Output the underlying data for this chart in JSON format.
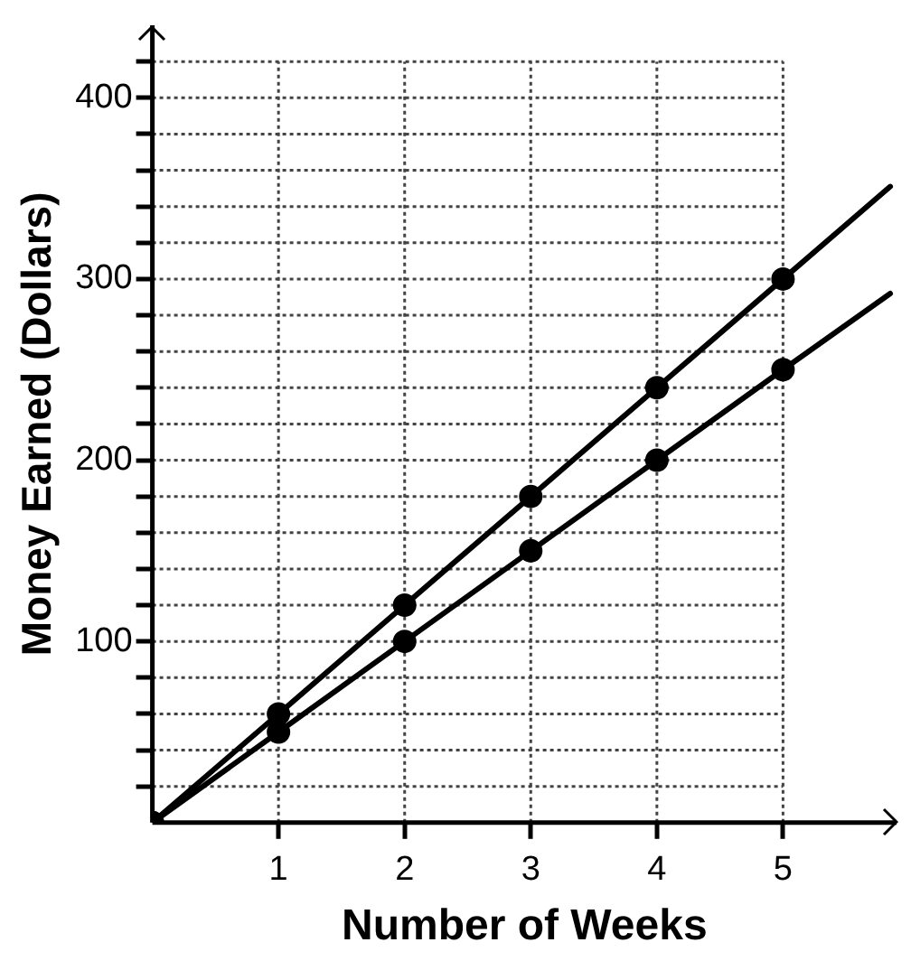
{
  "chart_data": {
    "type": "line",
    "xlabel": "Number of Weeks",
    "ylabel": "Money Earned (Dollars)",
    "xlim": [
      0,
      5.9
    ],
    "ylim": [
      0,
      440
    ],
    "xticks": [
      1,
      2,
      3,
      4,
      5
    ],
    "yticks": [
      {
        "value": 20,
        "label": null
      },
      {
        "value": 40,
        "label": null
      },
      {
        "value": 60,
        "label": null
      },
      {
        "value": 80,
        "label": null
      },
      100,
      {
        "value": 120,
        "label": null
      },
      {
        "value": 140,
        "label": null
      },
      {
        "value": 160,
        "label": null
      },
      {
        "value": 180,
        "label": null
      },
      200,
      {
        "value": 220,
        "label": null
      },
      {
        "value": 240,
        "label": null
      },
      {
        "value": 260,
        "label": null
      },
      {
        "value": 280,
        "label": null
      },
      300,
      {
        "value": 320,
        "label": null
      },
      {
        "value": 340,
        "label": null
      },
      {
        "value": 360,
        "label": null
      },
      {
        "value": 380,
        "label": null
      },
      400,
      {
        "value": 420,
        "label": null
      }
    ],
    "grid": true,
    "legend": false,
    "line_style": "solid",
    "series": [
      {
        "color": "#000000",
        "marker": "circle",
        "x": [
          0,
          1,
          2,
          3,
          4,
          5
        ],
        "values": [
          0,
          60,
          120,
          180,
          240,
          300
        ]
      },
      {
        "color": "#000000",
        "marker": "circle",
        "x": [
          0,
          1,
          2,
          3,
          4,
          5
        ],
        "values": [
          0,
          50,
          100,
          150,
          200,
          250
        ]
      },
      {
        "color": "#000000",
        "marker": "none",
        "x": [
          5,
          5.85
        ],
        "values": [
          300,
          351
        ]
      },
      {
        "color": "#000000",
        "marker": "none",
        "x": [
          5,
          5.85
        ],
        "values": [
          250,
          292
        ]
      }
    ]
  }
}
